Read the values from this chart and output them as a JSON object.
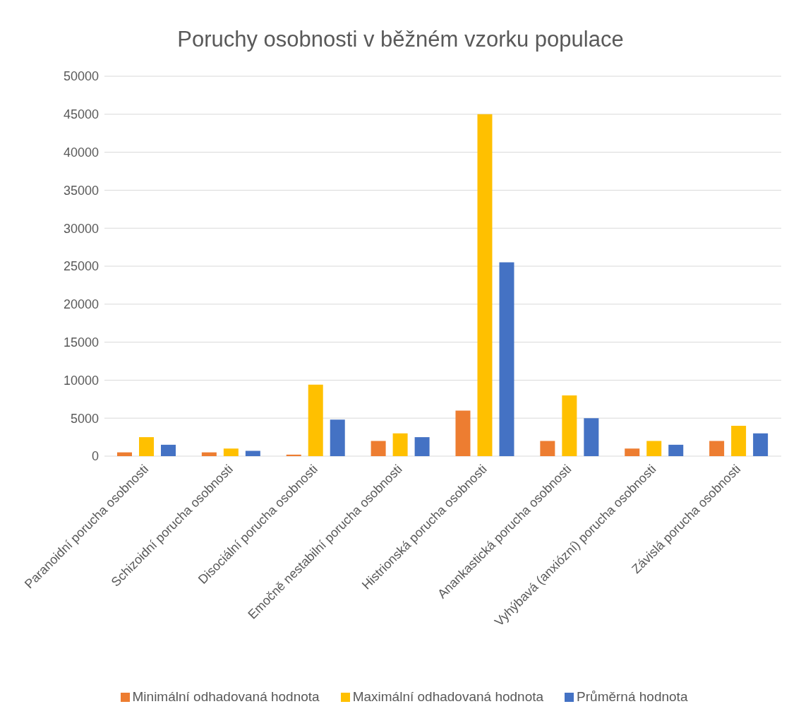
{
  "chart_data": {
    "type": "bar",
    "title": "Poruchy osobnosti v běžném vzorku populace",
    "categories": [
      "Paranoidní porucha osobnosti",
      "Schizoidní porucha osobnosti",
      "Disociální porucha osobnosti",
      "Emočně nestabilní porucha osobnosti",
      "Histrionská porucha osobnosti",
      "Anankastická porucha osobnosti",
      "Vyhýbavá (anxiózní) porucha osobnosti",
      "Závislá porucha osobnosti"
    ],
    "series": [
      {
        "name": "Minimální odhadovaná hodnota",
        "color": "#ed7d31",
        "values": [
          500,
          500,
          200,
          2000,
          6000,
          2000,
          1000,
          2000
        ]
      },
      {
        "name": "Maximální odhadovaná hodnota",
        "color": "#ffc000",
        "values": [
          2500,
          1000,
          9400,
          3000,
          45000,
          8000,
          2000,
          4000
        ]
      },
      {
        "name": "Průměrná hodnota",
        "color": "#4472c4",
        "values": [
          1500,
          700,
          4800,
          2500,
          25500,
          5000,
          1500,
          3000
        ]
      }
    ],
    "ylim": [
      0,
      50000
    ],
    "yticks": [
      0,
      5000,
      10000,
      15000,
      20000,
      25000,
      30000,
      35000,
      40000,
      45000,
      50000
    ],
    "grid": "y",
    "legend": "bottom"
  }
}
